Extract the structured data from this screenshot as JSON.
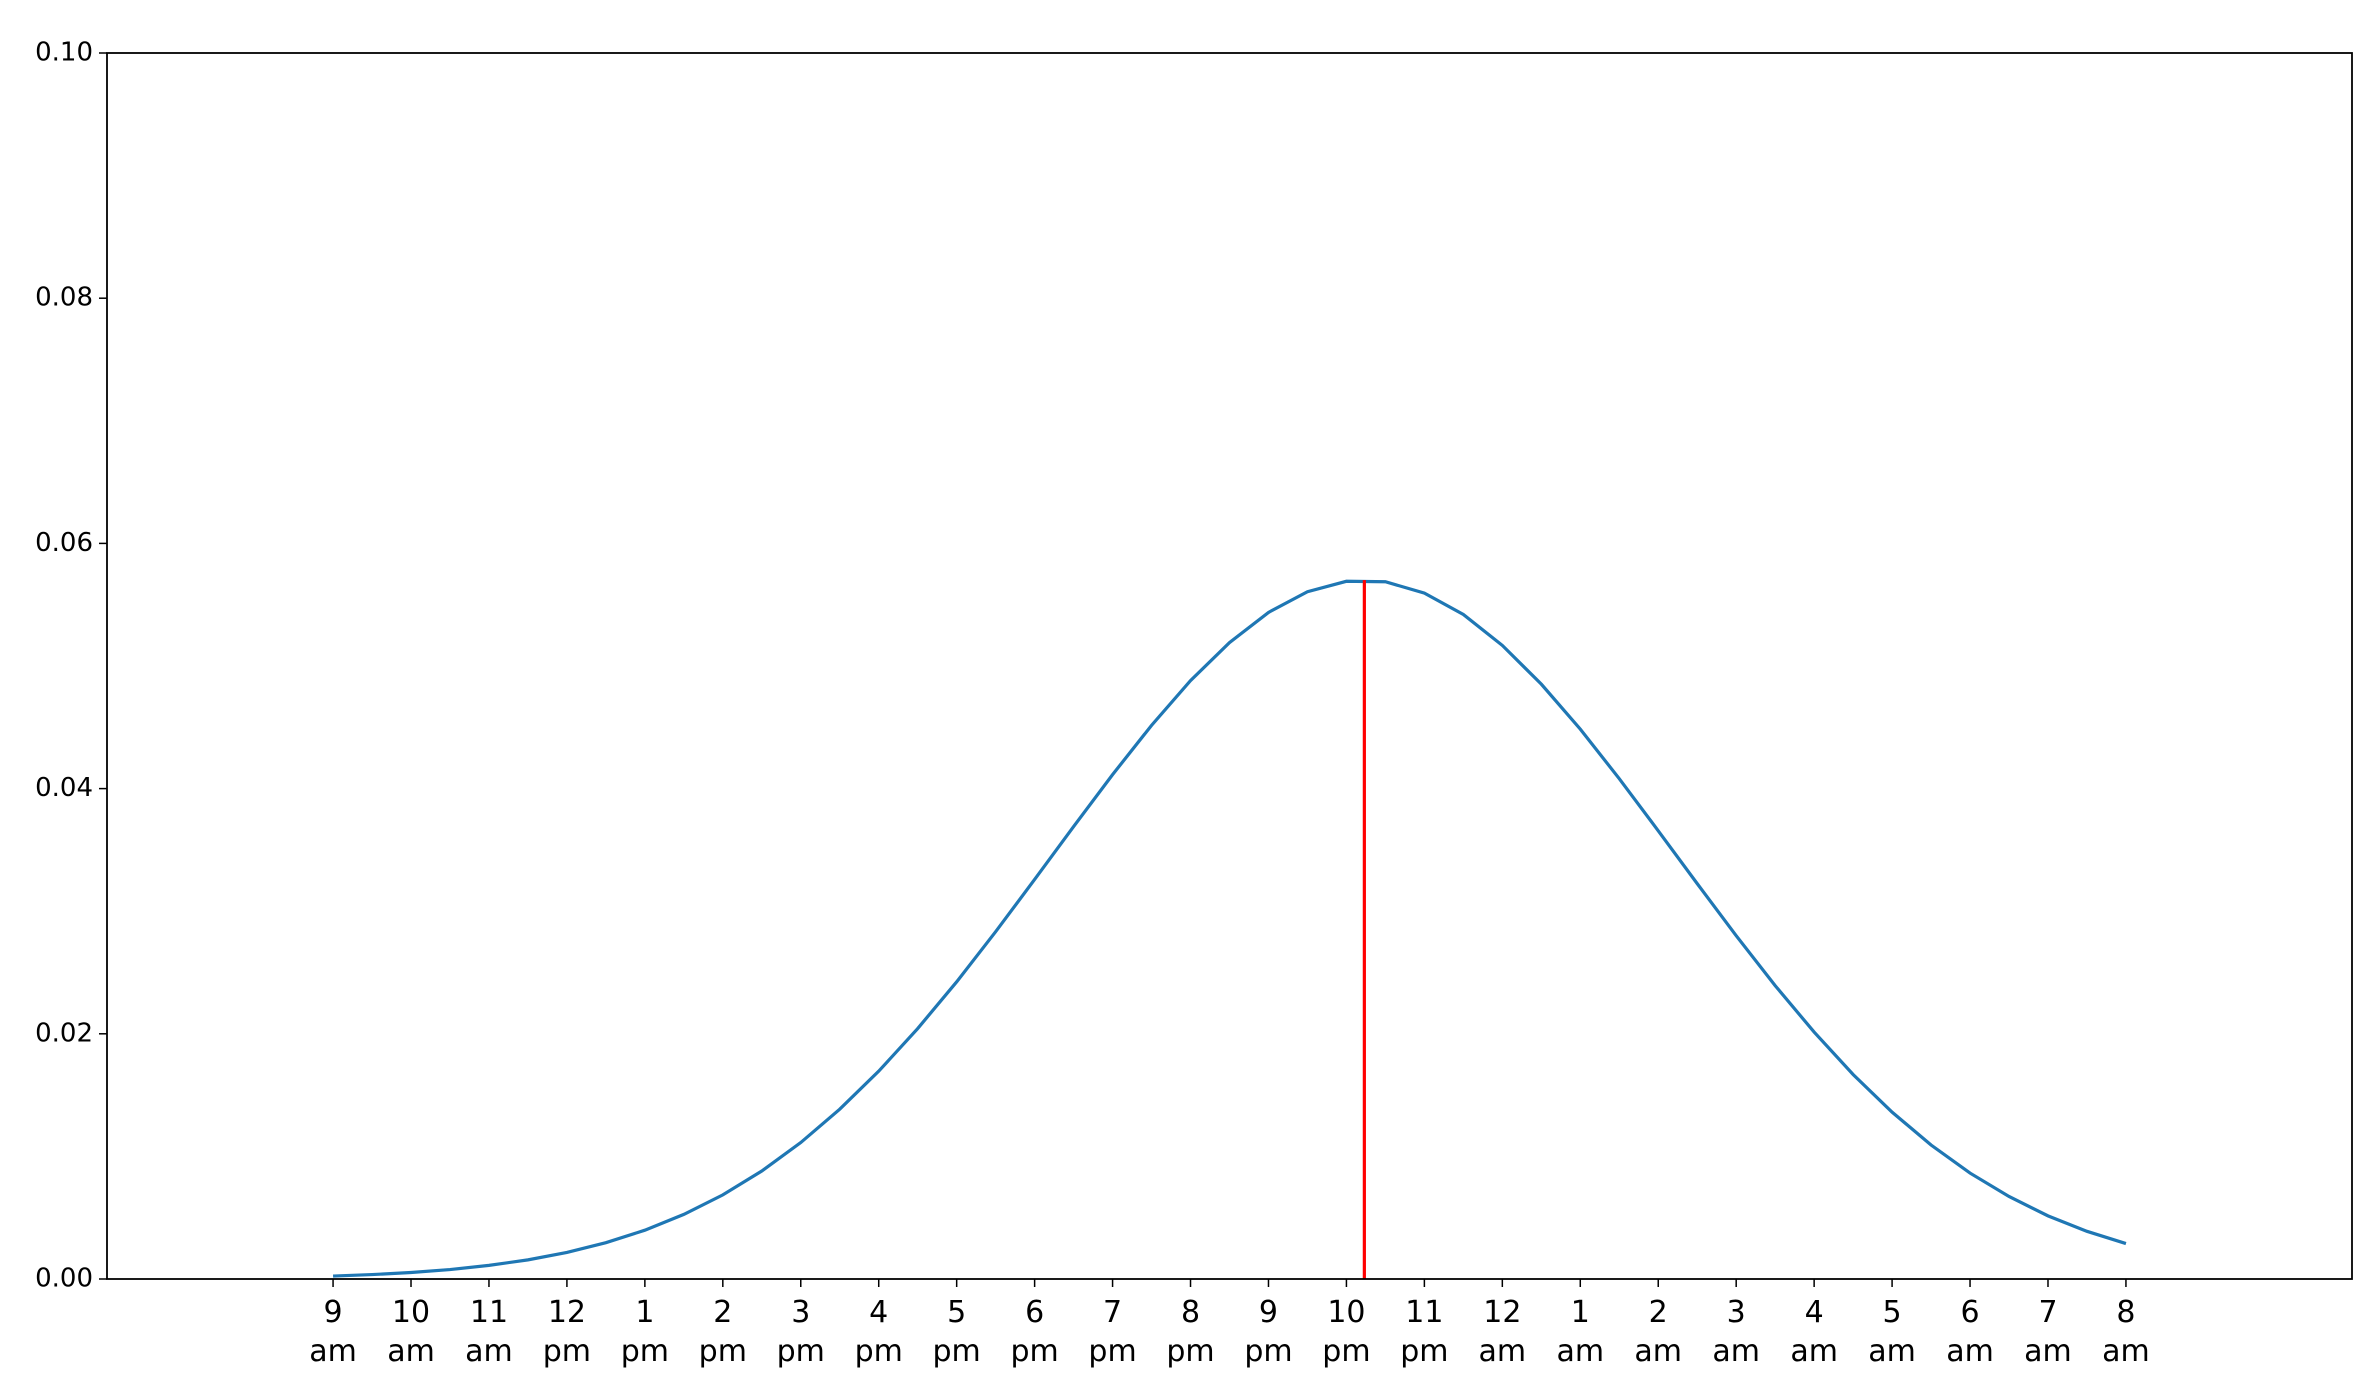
{
  "chart_data": {
    "type": "line",
    "x": [
      9,
      9.5,
      10,
      10.5,
      11,
      11.5,
      12,
      12.5,
      13,
      13.5,
      14,
      14.5,
      15,
      15.5,
      16,
      16.5,
      17,
      17.5,
      18,
      18.5,
      19,
      19.5,
      20,
      20.5,
      21,
      21.5,
      22,
      22.5,
      23,
      23.5,
      24,
      24.5,
      25,
      25.5,
      26,
      26.5,
      27,
      27.5,
      28,
      28.5,
      29,
      29.5,
      30,
      30.5,
      31,
      31.5,
      32
    ],
    "series": [
      {
        "color": "#1f77b4",
        "values": [
          0.00024,
          0.00036,
          0.00053,
          0.00077,
          0.00111,
          0.00156,
          0.00217,
          0.00296,
          0.00398,
          0.00527,
          0.00686,
          0.00881,
          0.01113,
          0.01385,
          0.01695,
          0.02043,
          0.02424,
          0.02833,
          0.03259,
          0.0369,
          0.04114,
          0.04516,
          0.04881,
          0.05191,
          0.05437,
          0.05606,
          0.05691,
          0.05687,
          0.05595,
          0.0542,
          0.05168,
          0.04852,
          0.04485,
          0.04081,
          0.03656,
          0.03225,
          0.028,
          0.02393,
          0.02014,
          0.01668,
          0.01361,
          0.01093,
          0.00864,
          0.00673,
          0.00515,
          0.00389,
          0.00289
        ]
      }
    ],
    "vline": {
      "x": 22.23,
      "ymax": 0.057,
      "color": "#ff0000"
    },
    "xlim": [
      6.1,
      34.9
    ],
    "xticks": [
      {
        "value": 9,
        "label": "9\nam"
      },
      {
        "value": 10,
        "label": "10\nam"
      },
      {
        "value": 11,
        "label": "11\nam"
      },
      {
        "value": 12,
        "label": "12\npm"
      },
      {
        "value": 13,
        "label": "1\npm"
      },
      {
        "value": 14,
        "label": "2\npm"
      },
      {
        "value": 15,
        "label": "3\npm"
      },
      {
        "value": 16,
        "label": "4\npm"
      },
      {
        "value": 17,
        "label": "5\npm"
      },
      {
        "value": 18,
        "label": "6\npm"
      },
      {
        "value": 19,
        "label": "7\npm"
      },
      {
        "value": 20,
        "label": "8\npm"
      },
      {
        "value": 21,
        "label": "9\npm"
      },
      {
        "value": 22,
        "label": "10\npm"
      },
      {
        "value": 23,
        "label": "11\npm"
      },
      {
        "value": 24,
        "label": "12\nam"
      },
      {
        "value": 25,
        "label": "1\nam"
      },
      {
        "value": 26,
        "label": "2\nam"
      },
      {
        "value": 27,
        "label": "3\nam"
      },
      {
        "value": 28,
        "label": "4\nam"
      },
      {
        "value": 29,
        "label": "5\nam"
      },
      {
        "value": 30,
        "label": "6\nam"
      },
      {
        "value": 31,
        "label": "7\nam"
      },
      {
        "value": 32,
        "label": "8\nam"
      }
    ],
    "ylim": [
      0,
      0.1
    ],
    "yticks": [
      {
        "value": 0,
        "label": "0.00"
      },
      {
        "value": 0.02,
        "label": "0.02"
      },
      {
        "value": 0.04,
        "label": "0.04"
      },
      {
        "value": 0.06,
        "label": "0.06"
      },
      {
        "value": 0.08,
        "label": "0.08"
      },
      {
        "value": 0.1,
        "label": "0.10"
      }
    ],
    "grid": false
  }
}
